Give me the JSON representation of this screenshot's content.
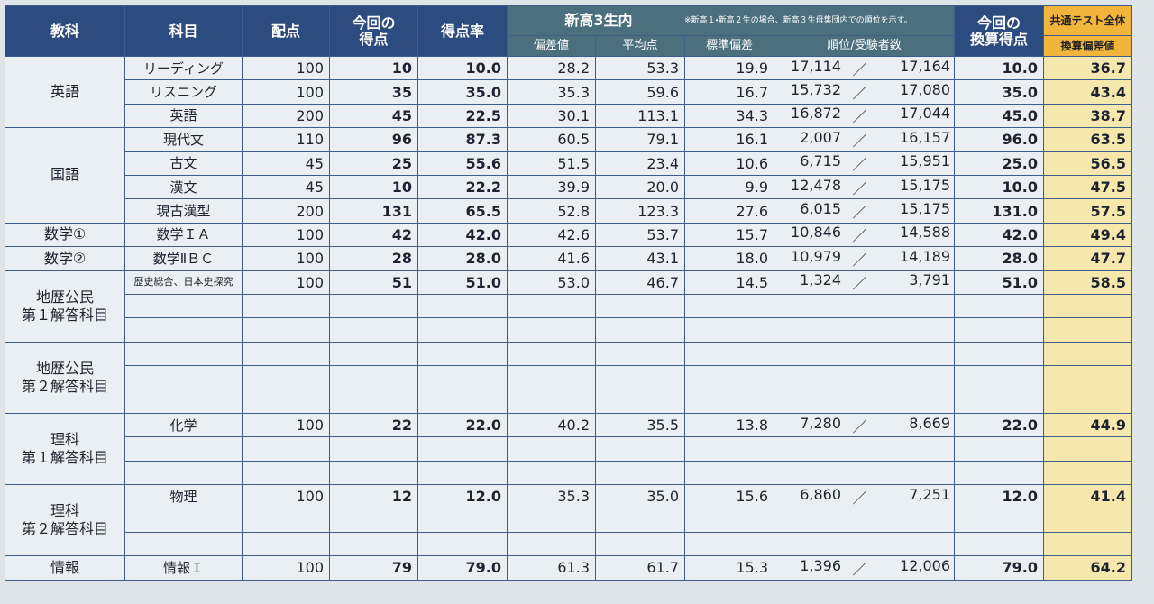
{
  "header": {
    "subject_area": "教科",
    "subject": "科目",
    "max_score": "配点",
    "score": "今回の\n得点",
    "score_rate": "得点率",
    "group_title": "新高3生内",
    "group_note": "※新高１・新高２生の場合、新高３生母集団内での順位を示す。",
    "deviation": "偏差値",
    "average": "平均点",
    "std_dev": "標準偏差",
    "rank": "順位/受験者数",
    "converted_score": "今回の\n換算得点",
    "common_test": "共通テスト全体",
    "converted_deviation": "換算偏差値"
  },
  "separator": "／",
  "groups": [
    {
      "name": "英語",
      "rows": [
        [
          "リーディング",
          "100",
          "10",
          "10.0",
          "28.2",
          "53.3",
          "19.9",
          "17,114",
          "17,164",
          "10.0",
          "36.7"
        ],
        [
          "リスニング",
          "100",
          "35",
          "35.0",
          "35.3",
          "59.6",
          "16.7",
          "15,732",
          "17,080",
          "35.0",
          "43.4"
        ],
        [
          "英語",
          "200",
          "45",
          "22.5",
          "30.1",
          "113.1",
          "34.3",
          "16,872",
          "17,044",
          "45.0",
          "38.7"
        ]
      ]
    },
    {
      "name": "国語",
      "rows": [
        [
          "現代文",
          "110",
          "96",
          "87.3",
          "60.5",
          "79.1",
          "16.1",
          "2,007",
          "16,157",
          "96.0",
          "63.5"
        ],
        [
          "古文",
          "45",
          "25",
          "55.6",
          "51.5",
          "23.4",
          "10.6",
          "6,715",
          "15,951",
          "25.0",
          "56.5"
        ],
        [
          "漢文",
          "45",
          "10",
          "22.2",
          "39.9",
          "20.0",
          "9.9",
          "12,478",
          "15,175",
          "10.0",
          "47.5"
        ],
        [
          "現古漢型",
          "200",
          "131",
          "65.5",
          "52.8",
          "123.3",
          "27.6",
          "6,015",
          "15,175",
          "131.0",
          "57.5"
        ]
      ]
    },
    {
      "name": "数学①",
      "rows": [
        [
          "数学ＩＡ",
          "100",
          "42",
          "42.0",
          "42.6",
          "53.7",
          "15.7",
          "10,846",
          "14,588",
          "42.0",
          "49.4"
        ]
      ]
    },
    {
      "name": "数学②",
      "rows": [
        [
          "数学ⅡＢＣ",
          "100",
          "28",
          "28.0",
          "41.6",
          "43.1",
          "18.0",
          "10,979",
          "14,189",
          "28.0",
          "47.7"
        ]
      ]
    },
    {
      "name": "地歴公民\n第１解答科目",
      "rows": [
        [
          "歴史総合、日本史探究",
          "100",
          "51",
          "51.0",
          "53.0",
          "46.7",
          "14.5",
          "1,324",
          "3,791",
          "51.0",
          "58.5"
        ]
      ]
    },
    {
      "name": "地歴公民\n第２解答科目",
      "rows": []
    },
    {
      "name": "理科\n第１解答科目",
      "rows": [
        [
          "化学",
          "100",
          "22",
          "22.0",
          "40.2",
          "35.5",
          "13.8",
          "7,280",
          "8,669",
          "22.0",
          "44.9"
        ]
      ]
    },
    {
      "name": "理科\n第２解答科目",
      "rows": [
        [
          "物理",
          "100",
          "12",
          "12.0",
          "35.3",
          "35.0",
          "15.6",
          "6,860",
          "7,251",
          "12.0",
          "41.4"
        ]
      ]
    },
    {
      "name": "情報",
      "rows": [
        [
          "情報Ｉ",
          "100",
          "79",
          "79.0",
          "61.3",
          "61.7",
          "15.3",
          "1,396",
          "12,006",
          "79.0",
          "64.2"
        ]
      ]
    }
  ]
}
